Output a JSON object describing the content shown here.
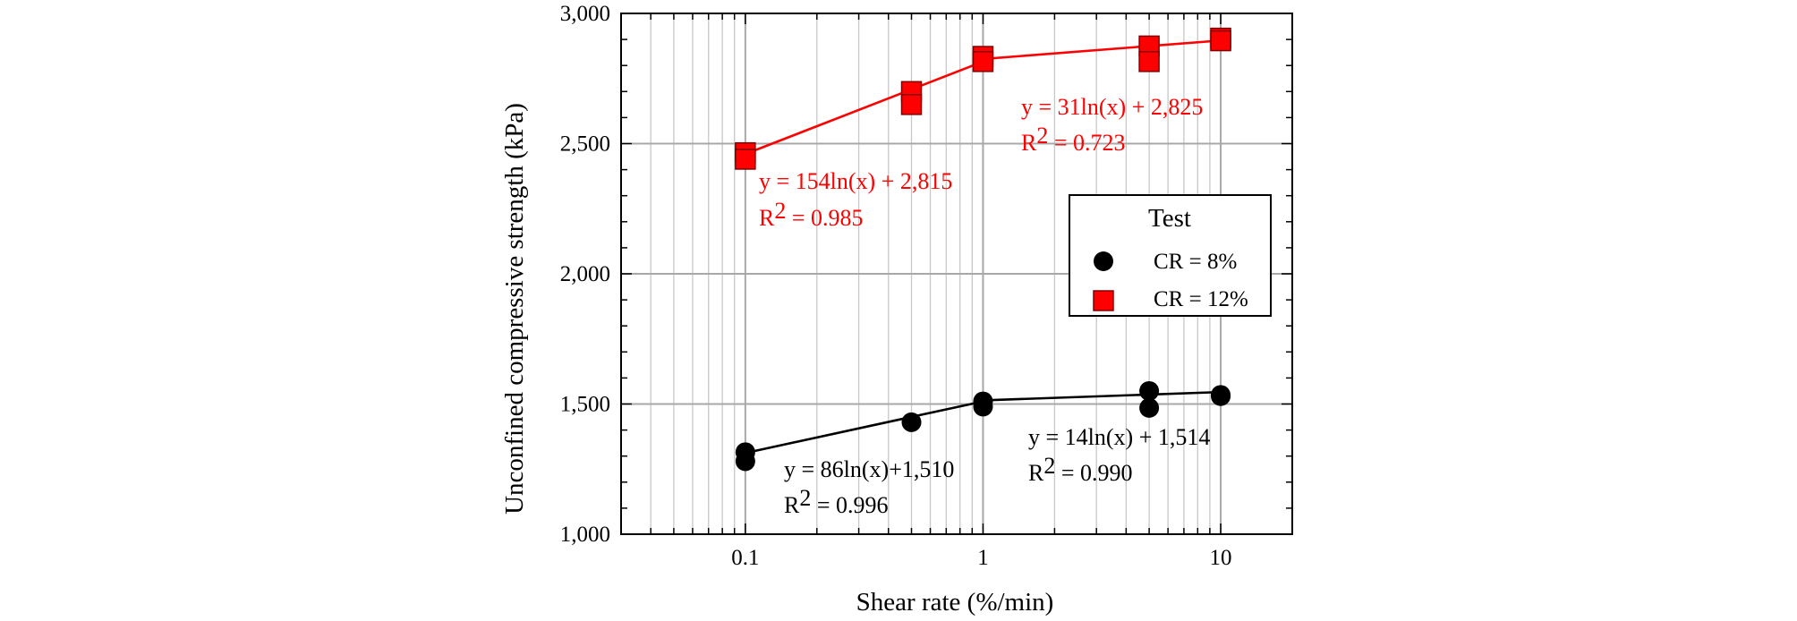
{
  "chart_data": {
    "type": "scatter",
    "xlabel": "Shear rate (%/min)",
    "ylabel": "Unconfined compressive strength (kPa)",
    "x_scale": "log",
    "xlim": [
      0.03,
      20
    ],
    "ylim": [
      1000,
      3000
    ],
    "x_ticks": [
      0.1,
      1,
      10
    ],
    "x_tick_labels": [
      "0.1",
      "1",
      "10"
    ],
    "y_ticks": [
      1000,
      1500,
      2000,
      2500,
      3000
    ],
    "y_tick_labels": [
      "1,000",
      "1,500",
      "2,000",
      "2,500",
      "3,000"
    ],
    "grid": true,
    "legend": {
      "title": "Test",
      "position": "right",
      "entries": [
        "CR = 8%",
        "CR = 12%"
      ]
    },
    "colors": {
      "CR8": "#000000",
      "CR12": "#ff0000"
    },
    "series": [
      {
        "name": "CR = 8%",
        "marker": "circle",
        "color": "#000000",
        "points": [
          [
            0.1,
            1315
          ],
          [
            0.1,
            1280
          ],
          [
            0.5,
            1430
          ],
          [
            1,
            1510
          ],
          [
            1,
            1490
          ],
          [
            5,
            1550
          ],
          [
            5,
            1485
          ],
          [
            10,
            1535
          ],
          [
            10,
            1530
          ]
        ]
      },
      {
        "name": "CR = 12%",
        "marker": "square",
        "color": "#ff0000",
        "points": [
          [
            0.1,
            2465
          ],
          [
            0.1,
            2440
          ],
          [
            0.5,
            2700
          ],
          [
            0.5,
            2650
          ],
          [
            1,
            2835
          ],
          [
            1,
            2815
          ],
          [
            5,
            2875
          ],
          [
            5,
            2815
          ],
          [
            10,
            2905
          ],
          [
            10,
            2895
          ]
        ]
      }
    ],
    "trendlines": [
      {
        "series": "CR = 8%",
        "color": "#000000",
        "points": [
          [
            0.1,
            1312
          ],
          [
            1,
            1510
          ]
        ]
      },
      {
        "series": "CR = 8%",
        "color": "#000000",
        "points": [
          [
            1,
            1514
          ],
          [
            10,
            1546
          ]
        ]
      },
      {
        "series": "CR = 12%",
        "color": "#ff0000",
        "points": [
          [
            0.1,
            2460
          ],
          [
            1,
            2815
          ]
        ]
      },
      {
        "series": "CR = 12%",
        "color": "#ff0000",
        "points": [
          [
            1,
            2825
          ],
          [
            10,
            2896
          ]
        ]
      }
    ],
    "annotations": [
      {
        "eq": "y = 154ln(x) + 2,815",
        "r2_prefix": "R",
        "r2_exp": "2",
        "r2_value": " = 0.985",
        "color": "#ff0000"
      },
      {
        "eq": "y = 31ln(x) + 2,825",
        "r2_prefix": "R",
        "r2_exp": "2",
        "r2_value": " = 0.723",
        "color": "#ff0000"
      },
      {
        "eq": "y = 86ln(x)+1,510",
        "r2_prefix": "R",
        "r2_exp": "2",
        "r2_value": " = 0.996",
        "color": "#000000"
      },
      {
        "eq": "y = 14ln(x) + 1,514",
        "r2_prefix": "R",
        "r2_exp": "2",
        "r2_value": " = 0.990",
        "color": "#000000"
      }
    ]
  }
}
